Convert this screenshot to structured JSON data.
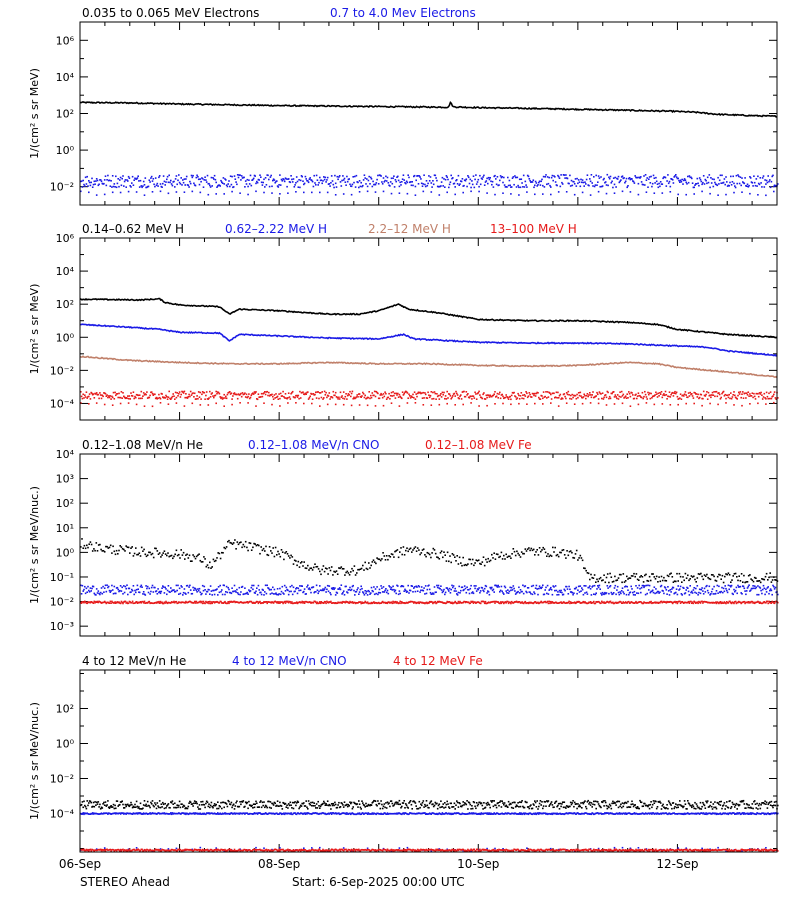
{
  "footer": {
    "spacecraft": "STEREO Ahead",
    "start": "Start:  6-Sep-2025 00:00 UTC"
  },
  "colors": {
    "black": "#000000",
    "blue": "#1a1ae6",
    "tan": "#c0806a",
    "red": "#e61a1a"
  },
  "chart_data": [
    {
      "type": "scatter",
      "ylabel": "1/(cm² s sr MeV)",
      "yscale": "log",
      "ylim_exp": [
        -3,
        7
      ],
      "ytick_labels": [
        "10⁻²",
        "10⁰",
        "10²",
        "10⁴",
        "10⁶"
      ],
      "x_ticks": [
        "06-Sep",
        "08-Sep",
        "10-Sep",
        "12-Sep"
      ],
      "xlim_days": [
        6,
        13
      ],
      "series": [
        {
          "name": "0.035 to 0.065 MeV Electrons",
          "color": "#000000",
          "style": "line",
          "points": [
            [
              6.0,
              400
            ],
            [
              6.5,
              380
            ],
            [
              7.0,
              330
            ],
            [
              7.5,
              300
            ],
            [
              8.0,
              270
            ],
            [
              8.5,
              255
            ],
            [
              9.0,
              240
            ],
            [
              9.7,
              220
            ],
            [
              9.72,
              400
            ],
            [
              9.75,
              230
            ],
            [
              10.0,
              210
            ],
            [
              10.5,
              190
            ],
            [
              11.0,
              170
            ],
            [
              11.5,
              150
            ],
            [
              12.0,
              130
            ],
            [
              12.2,
              115
            ],
            [
              12.4,
              90
            ],
            [
              12.8,
              75
            ],
            [
              13.0,
              70
            ]
          ]
        },
        {
          "name": "0.7 to 4.0 Mev Electrons",
          "color": "#1a1ae6",
          "style": "dots",
          "band": [
            0.01,
            0.05
          ],
          "sparse_low": 0.005
        }
      ]
    },
    {
      "type": "scatter",
      "ylabel": "1/(cm² s sr MeV)",
      "yscale": "log",
      "ylim_exp": [
        -5,
        6
      ],
      "ytick_labels": [
        "10⁻⁴",
        "10⁻²",
        "10⁰",
        "10²",
        "10⁴",
        "10⁶"
      ],
      "x_ticks": [
        "06-Sep",
        "08-Sep",
        "10-Sep",
        "12-Sep"
      ],
      "xlim_days": [
        6,
        13
      ],
      "series": [
        {
          "name": "0.14–0.62 MeV H",
          "color": "#000000",
          "style": "line",
          "points": [
            [
              6.0,
              200
            ],
            [
              6.3,
              190
            ],
            [
              6.6,
              180
            ],
            [
              6.8,
              210
            ],
            [
              6.85,
              130
            ],
            [
              7.0,
              90
            ],
            [
              7.4,
              70
            ],
            [
              7.5,
              25
            ],
            [
              7.6,
              50
            ],
            [
              8.0,
              40
            ],
            [
              8.5,
              25
            ],
            [
              8.8,
              25
            ],
            [
              9.0,
              40
            ],
            [
              9.2,
              100
            ],
            [
              9.3,
              50
            ],
            [
              9.6,
              30
            ],
            [
              10.0,
              12
            ],
            [
              10.5,
              10
            ],
            [
              11.0,
              10
            ],
            [
              11.5,
              8
            ],
            [
              11.8,
              6
            ],
            [
              12.0,
              3
            ],
            [
              12.3,
              2
            ],
            [
              12.5,
              1.5
            ],
            [
              13.0,
              1
            ]
          ]
        },
        {
          "name": "0.62–2.22 MeV H",
          "color": "#1a1ae6",
          "style": "line",
          "points": [
            [
              6.0,
              6
            ],
            [
              6.5,
              4
            ],
            [
              6.8,
              3
            ],
            [
              7.0,
              2
            ],
            [
              7.4,
              1.8
            ],
            [
              7.5,
              0.6
            ],
            [
              7.6,
              1.5
            ],
            [
              8.0,
              1.2
            ],
            [
              8.5,
              0.9
            ],
            [
              9.0,
              0.8
            ],
            [
              9.25,
              1.5
            ],
            [
              9.35,
              0.8
            ],
            [
              10.0,
              0.5
            ],
            [
              10.5,
              0.45
            ],
            [
              11.0,
              0.45
            ],
            [
              11.5,
              0.4
            ],
            [
              12.0,
              0.3
            ],
            [
              12.3,
              0.25
            ],
            [
              12.5,
              0.15
            ],
            [
              13.0,
              0.08
            ]
          ]
        },
        {
          "name": "2.2–12 MeV H",
          "color": "#c0806a",
          "style": "line",
          "points": [
            [
              6.0,
              0.07
            ],
            [
              6.5,
              0.04
            ],
            [
              7.0,
              0.03
            ],
            [
              7.5,
              0.025
            ],
            [
              8.0,
              0.025
            ],
            [
              8.5,
              0.03
            ],
            [
              9.0,
              0.025
            ],
            [
              9.5,
              0.025
            ],
            [
              10.0,
              0.02
            ],
            [
              10.5,
              0.018
            ],
            [
              11.0,
              0.02
            ],
            [
              11.5,
              0.03
            ],
            [
              11.8,
              0.025
            ],
            [
              12.0,
              0.015
            ],
            [
              12.5,
              0.008
            ],
            [
              13.0,
              0.004
            ]
          ]
        },
        {
          "name": "13–100 MeV H",
          "color": "#e61a1a",
          "style": "dots",
          "band": [
            0.0002,
            0.0006
          ],
          "sparse_low": 0.0001
        }
      ]
    },
    {
      "type": "scatter",
      "ylabel": "1/(cm² s sr MeV/nuc.)",
      "yscale": "log",
      "ylim_exp": [
        -3.4,
        4
      ],
      "ytick_labels": [
        "10⁻³",
        "10⁻²",
        "10⁻¹",
        "10⁰",
        "10¹",
        "10²",
        "10³",
        "10⁴"
      ],
      "x_ticks": [
        "06-Sep",
        "08-Sep",
        "10-Sep",
        "12-Sep"
      ],
      "xlim_days": [
        6,
        13
      ],
      "series": [
        {
          "name": "0.12–1.08 MeV/n He",
          "color": "#000000",
          "style": "dots",
          "points": [
            [
              6.0,
              2.5
            ],
            [
              6.2,
              1.6
            ],
            [
              6.5,
              1.2
            ],
            [
              6.8,
              1.0
            ],
            [
              7.0,
              0.9
            ],
            [
              7.2,
              0.6
            ],
            [
              7.3,
              0.3
            ],
            [
              7.5,
              2.5
            ],
            [
              7.7,
              1.8
            ],
            [
              8.0,
              1.0
            ],
            [
              8.2,
              0.4
            ],
            [
              8.4,
              0.2
            ],
            [
              8.8,
              0.2
            ],
            [
              9.0,
              0.6
            ],
            [
              9.3,
              1.4
            ],
            [
              9.6,
              0.9
            ],
            [
              9.8,
              0.5
            ],
            [
              10.0,
              0.4
            ],
            [
              10.2,
              0.8
            ],
            [
              10.5,
              1.2
            ],
            [
              10.8,
              1.1
            ],
            [
              11.0,
              0.8
            ],
            [
              11.1,
              0.1
            ],
            [
              11.5,
              0.1
            ],
            [
              12.0,
              0.1
            ],
            [
              12.5,
              0.1
            ],
            [
              13.0,
              0.1
            ]
          ]
        },
        {
          "name": "0.12–1.08 MeV/n CNO",
          "color": "#1a1ae6",
          "style": "dots",
          "band": [
            0.02,
            0.05
          ]
        },
        {
          "name": "0.12–1.08 MeV Fe",
          "color": "#e61a1a",
          "style": "dots",
          "band": [
            0.009,
            0.011
          ]
        }
      ]
    },
    {
      "type": "scatter",
      "ylabel": "1/(cm² s sr MeV/nuc.)",
      "yscale": "log",
      "ylim_exp": [
        -6.2,
        4.2
      ],
      "ytick_labels": [
        "10⁻⁴",
        "10⁻²",
        "10⁰",
        "10²"
      ],
      "x_ticks": [
        "06-Sep",
        "08-Sep",
        "10-Sep",
        "12-Sep"
      ],
      "xlim_days": [
        6,
        13
      ],
      "series": [
        {
          "name": "4 to 12 MeV/n He",
          "color": "#000000",
          "style": "dots",
          "band": [
            0.0002,
            0.0006
          ]
        },
        {
          "name": "4 to 12 MeV/n CNO",
          "color": "#1a1ae6",
          "style": "dots",
          "band": [
            0.0001,
            0.00012
          ],
          "sparse_low": 1e-06
        },
        {
          "name": "4 to 12 MeV Fe",
          "color": "#e61a1a",
          "style": "dots",
          "band": [
            8e-07,
            1e-06
          ]
        }
      ]
    }
  ]
}
